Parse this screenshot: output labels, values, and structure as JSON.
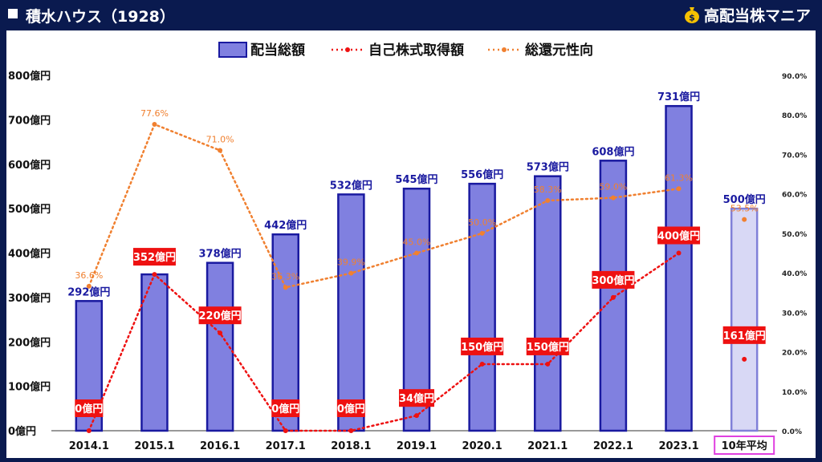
{
  "title": "積水ハウス（1928）",
  "brand": "高配当株マニア",
  "legend": {
    "bar": "配当総額",
    "buyback": "自己株式取得額",
    "ratio": "総還元性向"
  },
  "colors": {
    "bar_fill": "#8080e0",
    "bar_stroke": "#1a1aa0",
    "avg_fill": "#d8d8f5",
    "avg_stroke": "#8080d8",
    "buyback": "#ee1111",
    "ratio": "#f08030",
    "avg_box": "#e040e0",
    "bar_label": "#1a1aa0"
  },
  "chart_data": {
    "type": "bar",
    "categories": [
      "2014.1",
      "2015.1",
      "2016.1",
      "2017.1",
      "2018.1",
      "2019.1",
      "2020.1",
      "2021.1",
      "2022.1",
      "2023.1",
      "10年平均"
    ],
    "series": [
      {
        "name": "配当総額",
        "values": [
          292,
          352,
          378,
          442,
          532,
          545,
          556,
          573,
          608,
          731,
          500
        ],
        "labels": [
          "292億円",
          "",
          "378億円",
          "442億円",
          "532億円",
          "545億円",
          "556億円",
          "573億円",
          "608億円",
          "731億円",
          "500億円"
        ]
      },
      {
        "name": "自己株式取得額",
        "values": [
          0,
          352,
          220,
          0,
          0,
          34,
          150,
          150,
          300,
          400,
          161
        ],
        "labels": [
          "0億円",
          "352億円",
          "220億円",
          "0億円",
          "0億円",
          "34億円",
          "150億円",
          "150億円",
          "300億円",
          "400億円",
          "161億円"
        ]
      },
      {
        "name": "総還元性向",
        "values": [
          36.6,
          77.6,
          71.0,
          36.3,
          39.9,
          45.0,
          50.0,
          58.3,
          59.0,
          61.3,
          53.5
        ],
        "labels": [
          "36.6%",
          "77.6%",
          "71.0%",
          "36.3%",
          "39.9%",
          "45.0%",
          "50.0%",
          "58.3%",
          "59.0%",
          "61.3%",
          "53.5%"
        ]
      }
    ],
    "y_left": {
      "min": 0,
      "max": 800,
      "ticks": [
        "0億円",
        "100億円",
        "200億円",
        "300億円",
        "400億円",
        "500億円",
        "600億円",
        "700億円",
        "800億円"
      ]
    },
    "y_right": {
      "min": 0,
      "max": 90,
      "ticks": [
        "0.0%",
        "10.0%",
        "20.0%",
        "30.0%",
        "40.0%",
        "50.0%",
        "60.0%",
        "70.0%",
        "80.0%",
        "90.0%"
      ]
    },
    "legend_position": "top-center"
  }
}
